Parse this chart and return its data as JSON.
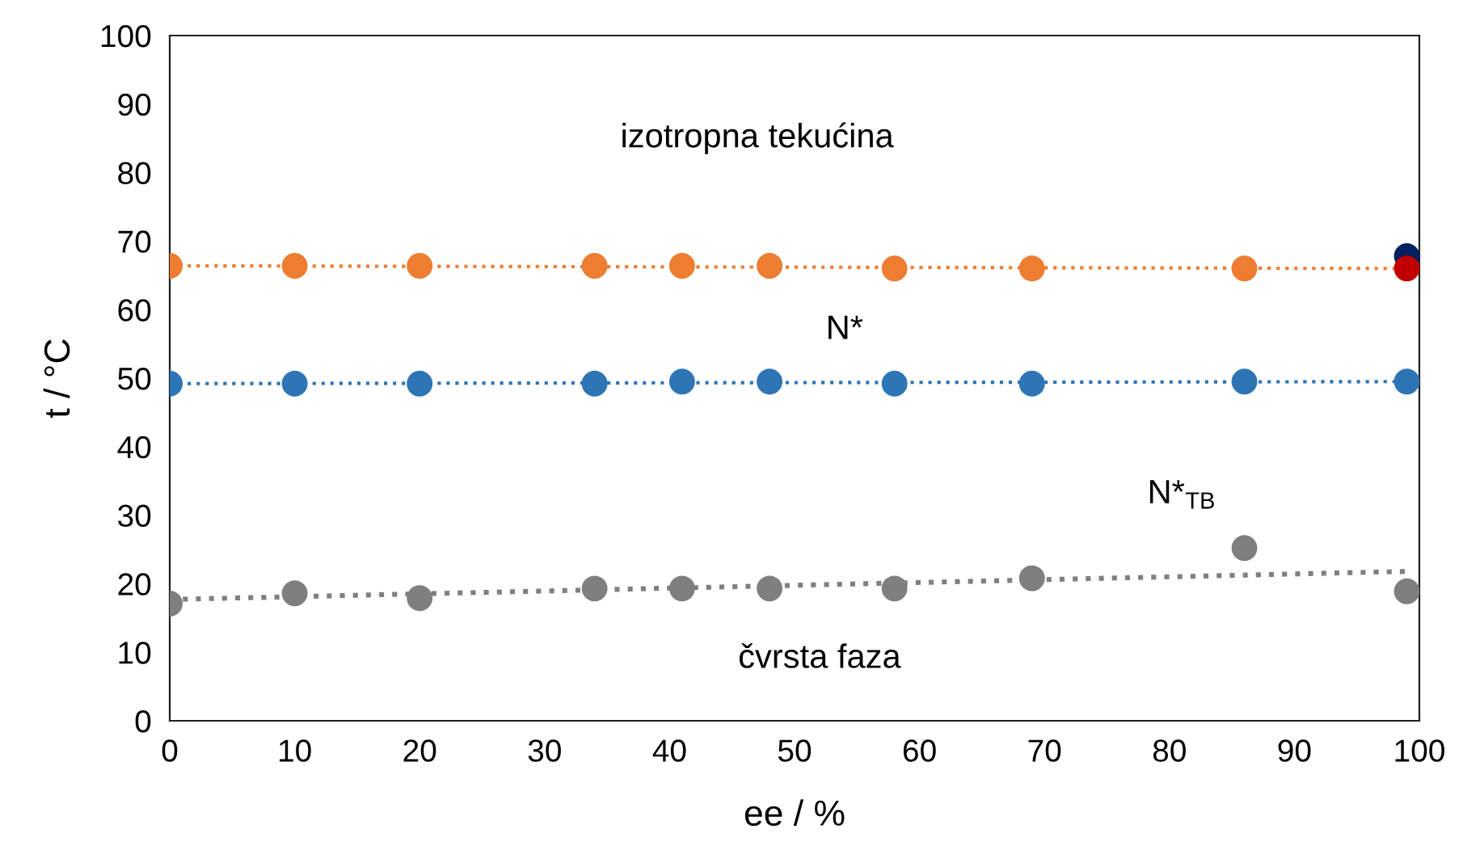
{
  "chart_data": {
    "type": "scatter",
    "xlabel": "ee / %",
    "ylabel": "t / °C",
    "xlim": [
      0,
      100
    ],
    "xticks": [
      0,
      10,
      20,
      30,
      40,
      50,
      60,
      70,
      80,
      90,
      100
    ],
    "ylim": [
      0,
      100
    ],
    "yticks": [
      0,
      10,
      20,
      30,
      40,
      50,
      60,
      70,
      80,
      90,
      100
    ],
    "grid": false,
    "legend": false,
    "marker": "circle",
    "series": [
      {
        "type": "line",
        "line_style": "dotted",
        "marker": "none",
        "color": "#ed7d31",
        "x": [
          0,
          99
        ],
        "values": [
          66.4,
          66.0
        ]
      },
      {
        "type": "line",
        "line_style": "dotted",
        "marker": "none",
        "color": "#2e75b6",
        "x": [
          0,
          99
        ],
        "values": [
          49.2,
          49.5
        ]
      },
      {
        "type": "line",
        "line_style": "dotted",
        "marker": "none",
        "color": "#7f7f7f",
        "x": [
          0,
          99
        ],
        "values": [
          17.7,
          21.8
        ]
      },
      {
        "color": "#ed7d31",
        "x": [
          0,
          10,
          20,
          34,
          41,
          48,
          58,
          69,
          86
        ],
        "values": [
          66.4,
          66.4,
          66.4,
          66.4,
          66.4,
          66.4,
          66.0,
          66.0,
          66.0
        ]
      },
      {
        "color": "#2e75b6",
        "x": [
          0,
          10,
          20,
          34,
          41,
          48,
          58,
          69,
          86,
          99
        ],
        "values": [
          49.2,
          49.2,
          49.2,
          49.2,
          49.5,
          49.5,
          49.2,
          49.2,
          49.5,
          49.5
        ]
      },
      {
        "color": "#7f7f7f",
        "x": [
          0,
          10,
          20,
          34,
          41,
          48,
          58,
          69,
          86,
          99
        ],
        "values": [
          17.1,
          18.6,
          17.9,
          19.3,
          19.3,
          19.3,
          19.3,
          20.8,
          25.2,
          18.9
        ]
      },
      {
        "color": "#002060",
        "x": [
          99
        ],
        "values": [
          67.8
        ]
      },
      {
        "color": "#c00000",
        "x": [
          99
        ],
        "values": [
          66.0
        ]
      }
    ],
    "annotations": [
      "izotropna tekućina",
      "N*",
      "N*$_{TB}$",
      "čvrsta faza"
    ]
  }
}
